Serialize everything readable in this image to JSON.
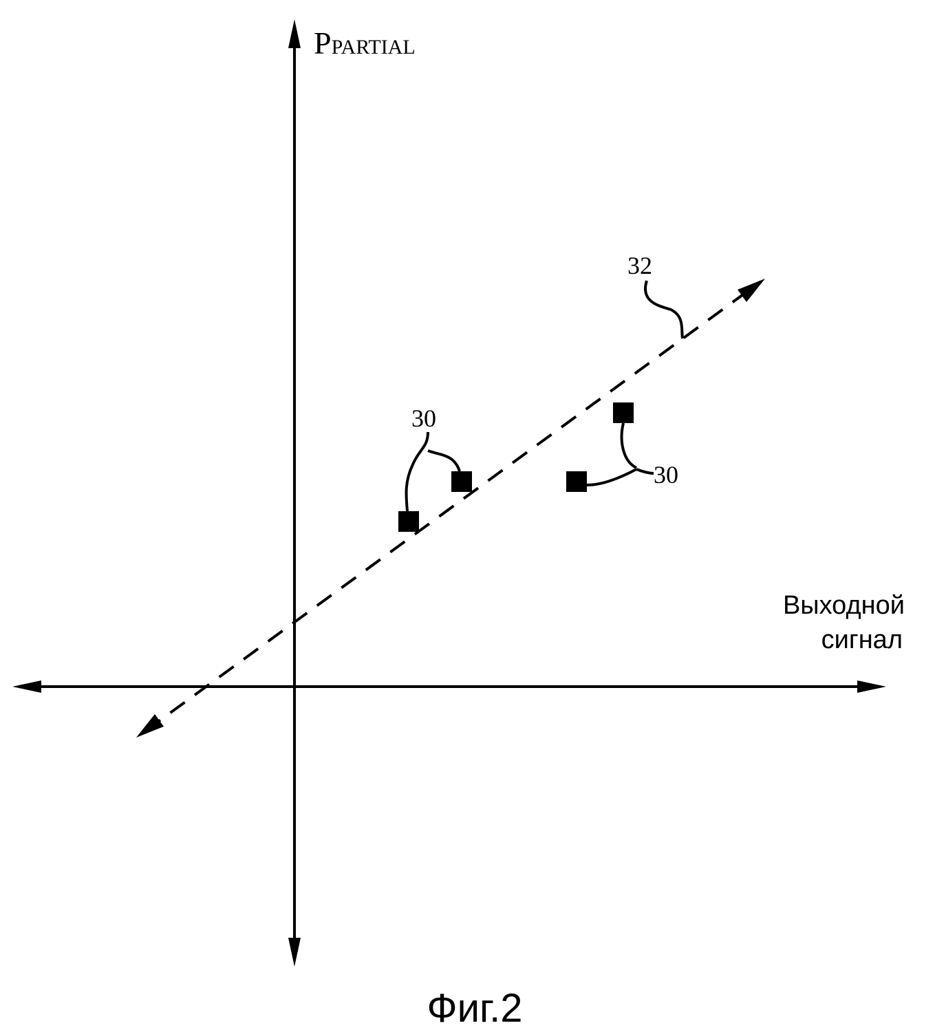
{
  "y_axis_label": {
    "main": "P",
    "subscript": "PARTIAL"
  },
  "x_axis_label": [
    "Выходной",
    "сигнал"
  ],
  "callouts": [
    "32",
    "30",
    "30"
  ],
  "caption": "Фиг.2"
}
